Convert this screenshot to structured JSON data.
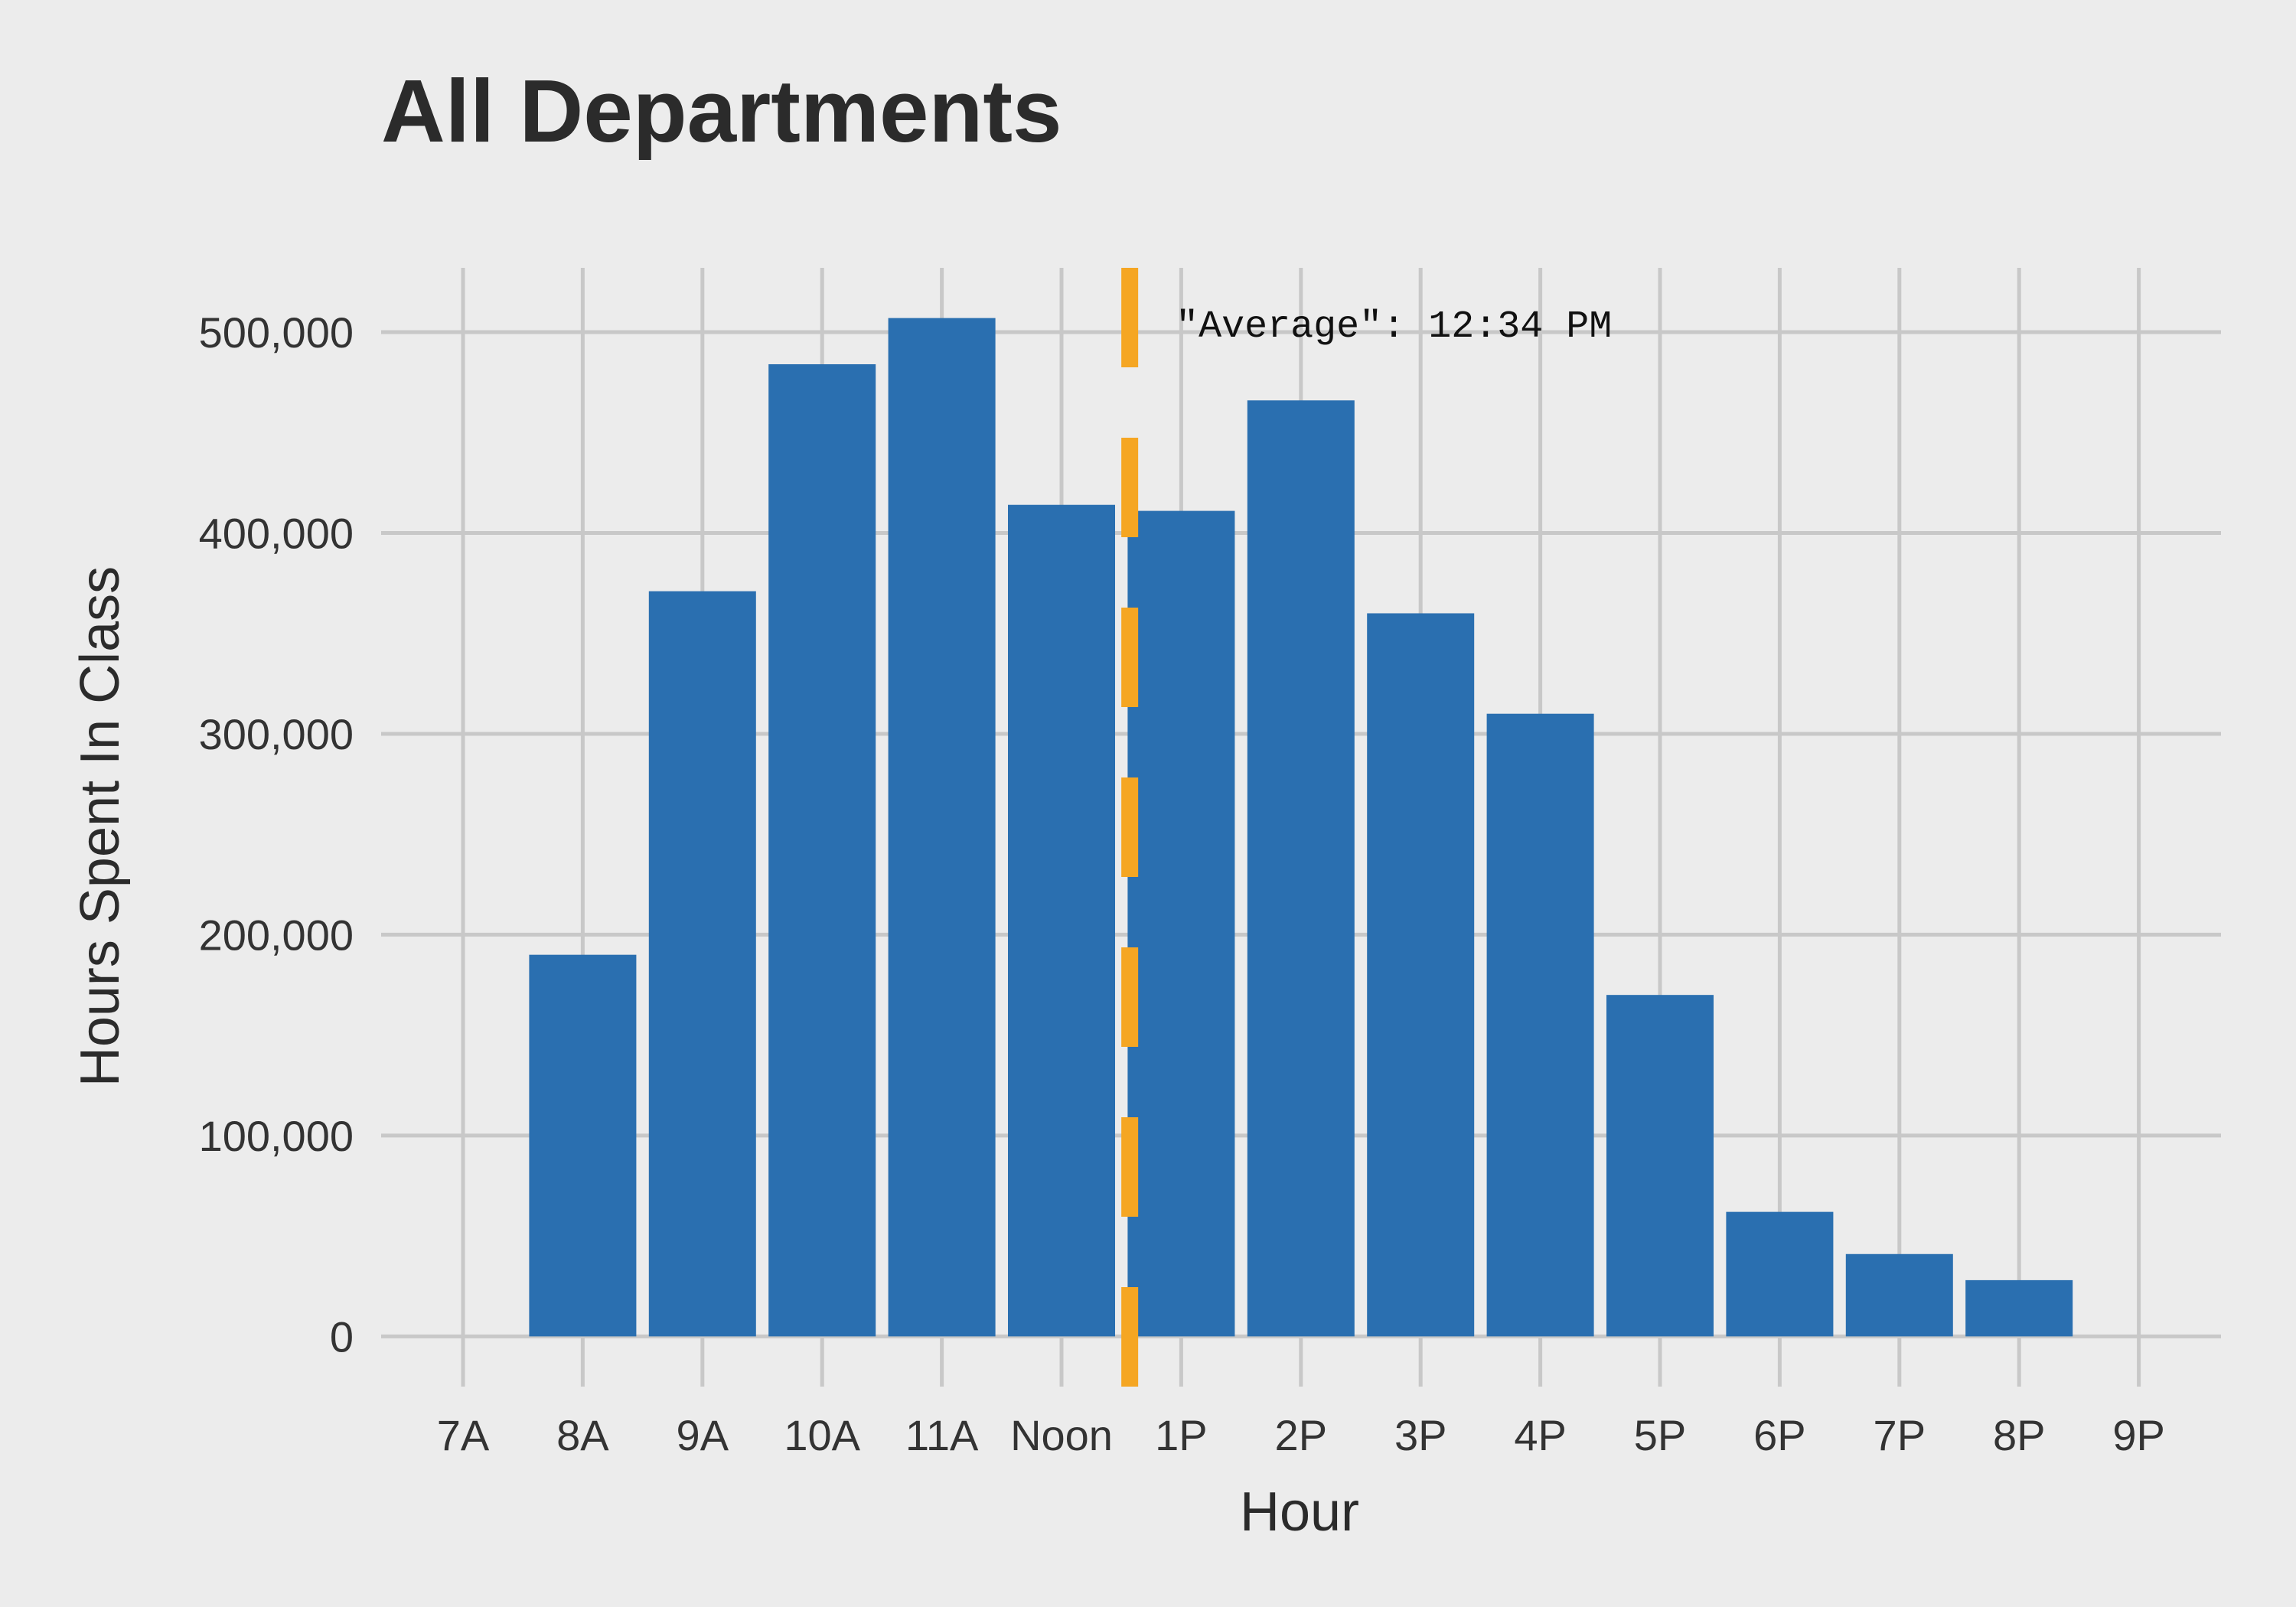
{
  "chart_data": {
    "type": "bar",
    "title": "All Departments",
    "xlabel": "Hour",
    "ylabel": "Hours Spent In Class",
    "categories": [
      "7A",
      "8A",
      "9A",
      "10A",
      "11A",
      "Noon",
      "1P",
      "2P",
      "3P",
      "4P",
      "5P",
      "6P",
      "7P",
      "8P",
      "9P"
    ],
    "values": [
      0,
      190000,
      371000,
      484000,
      507000,
      414000,
      411000,
      466000,
      360000,
      310000,
      170000,
      62000,
      41000,
      28000,
      0
    ],
    "ylim": [
      -25000,
      532000
    ],
    "yticks": [
      0,
      100000,
      200000,
      300000,
      400000,
      500000
    ],
    "ytick_labels": [
      "0",
      "100,000",
      "200,000",
      "300,000",
      "400,000",
      "500,000"
    ],
    "grid": true,
    "average_line": {
      "x_position": 5.57,
      "label": "\"Average\": 12:34 PM",
      "style": "dashed"
    },
    "colors": {
      "bar": "#2a6fb0",
      "average_line": "#f5a623",
      "background": "#ececec",
      "grid": "#c8c8c8"
    }
  }
}
